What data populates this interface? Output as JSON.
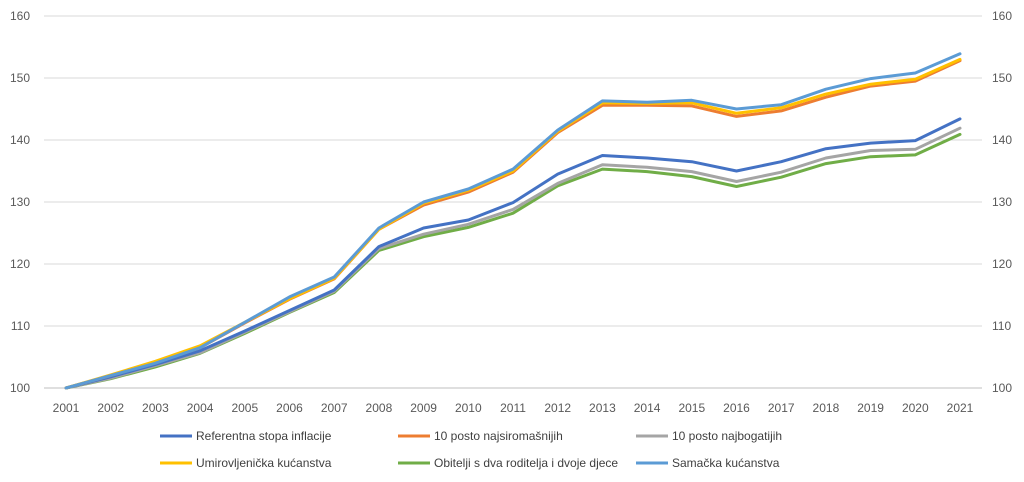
{
  "chart_data": {
    "type": "line",
    "title": "",
    "xlabel": "",
    "ylabel": "",
    "x": [
      "2001",
      "2002",
      "2003",
      "2004",
      "2005",
      "2006",
      "2007",
      "2008",
      "2009",
      "2010",
      "2011",
      "2012",
      "2013",
      "2014",
      "2015",
      "2016",
      "2017",
      "2018",
      "2019",
      "2020",
      "2021"
    ],
    "ylim": [
      100,
      160
    ],
    "yticks": [
      "100",
      "110",
      "120",
      "130",
      "140",
      "150",
      "160"
    ],
    "grid": true,
    "secondary_axis": true,
    "legend_position": "bottom",
    "series": [
      {
        "name": "Referentna stopa inflacije",
        "color": "#4472C4",
        "values": [
          100,
          101.8,
          103.8,
          106.0,
          109.2,
          112.5,
          115.8,
          122.8,
          125.8,
          127.1,
          129.9,
          134.5,
          137.5,
          137.1,
          136.5,
          135.0,
          136.5,
          138.6,
          139.5,
          139.9,
          143.4
        ]
      },
      {
        "name": "10 posto najsiromašnijih",
        "color": "#ED7D31",
        "values": [
          100,
          102.0,
          104.1,
          106.5,
          110.5,
          114.3,
          117.6,
          125.6,
          129.5,
          131.6,
          134.8,
          141.2,
          145.6,
          145.6,
          145.5,
          143.8,
          144.7,
          146.9,
          148.7,
          149.5,
          152.8
        ]
      },
      {
        "name": "10 posto najbogatijih",
        "color": "#A5A5A5",
        "values": [
          100,
          101.6,
          103.6,
          105.7,
          109.0,
          112.3,
          115.6,
          122.5,
          124.8,
          126.4,
          128.8,
          133.0,
          136.0,
          135.6,
          134.9,
          133.3,
          134.8,
          137.1,
          138.3,
          138.5,
          141.9
        ]
      },
      {
        "name": "Umirovljenička kućanstva",
        "color": "#FFC000",
        "values": [
          100,
          102.1,
          104.3,
          106.8,
          110.6,
          114.4,
          117.7,
          125.6,
          129.8,
          131.9,
          135.0,
          141.4,
          146.0,
          145.9,
          146.0,
          144.3,
          145.2,
          147.4,
          149.0,
          149.8,
          153.0
        ]
      },
      {
        "name": "Obitelji s dva roditelja i dvoje djece",
        "color": "#70AD47",
        "values": [
          100,
          101.5,
          103.4,
          105.6,
          108.8,
          112.2,
          115.4,
          122.2,
          124.4,
          125.9,
          128.2,
          132.6,
          135.3,
          134.9,
          134.1,
          132.5,
          134.0,
          136.2,
          137.3,
          137.6,
          140.9
        ]
      },
      {
        "name": "Samačka kućanstva",
        "color": "#5B9BD5",
        "values": [
          100,
          102.0,
          104.0,
          106.5,
          110.6,
          114.7,
          117.9,
          125.8,
          130.0,
          132.1,
          135.3,
          141.6,
          146.3,
          146.1,
          146.4,
          145.0,
          145.7,
          148.2,
          149.9,
          150.8,
          153.9
        ]
      }
    ]
  }
}
